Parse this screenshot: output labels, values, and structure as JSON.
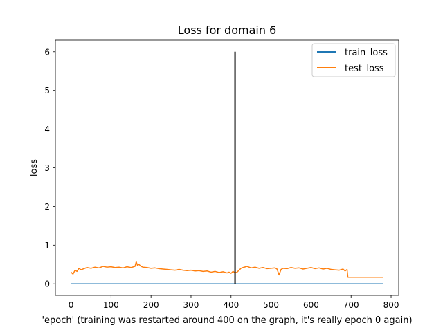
{
  "chart_data": {
    "type": "line",
    "title": "Loss for domain 6",
    "xlabel": "'epoch' (training was restarted around 400 on the graph, it's really epoch 0 again)",
    "ylabel": "loss",
    "xlim": [
      -39,
      819
    ],
    "ylim": [
      -0.3,
      6.3
    ],
    "xticks": [
      0,
      100,
      200,
      300,
      400,
      500,
      600,
      700,
      800
    ],
    "yticks": [
      0,
      1,
      2,
      3,
      4,
      5,
      6
    ],
    "grid": false,
    "legend_position": "top-right",
    "series": [
      {
        "name": "train_loss",
        "color": "#1f77b4",
        "x": [
          0,
          100,
          200,
          300,
          400,
          500,
          600,
          700,
          780
        ],
        "y": [
          0,
          0,
          0,
          0,
          0,
          0,
          0,
          0,
          0
        ]
      },
      {
        "name": "test_loss",
        "color": "#ff7f0e",
        "x": [
          0,
          5,
          10,
          15,
          20,
          25,
          30,
          40,
          50,
          60,
          70,
          80,
          90,
          100,
          110,
          120,
          130,
          140,
          150,
          160,
          163,
          166,
          170,
          175,
          180,
          190,
          200,
          210,
          220,
          230,
          240,
          250,
          260,
          270,
          280,
          290,
          300,
          310,
          320,
          330,
          340,
          350,
          360,
          370,
          380,
          390,
          395,
          400,
          405,
          410,
          415,
          420,
          425,
          430,
          440,
          450,
          460,
          470,
          480,
          490,
          500,
          510,
          515,
          520,
          525,
          530,
          540,
          550,
          560,
          570,
          580,
          590,
          600,
          610,
          620,
          630,
          640,
          650,
          660,
          670,
          680,
          685,
          690,
          692,
          695,
          700,
          780
        ],
        "y": [
          0.3,
          0.25,
          0.35,
          0.32,
          0.4,
          0.36,
          0.38,
          0.42,
          0.4,
          0.43,
          0.41,
          0.45,
          0.43,
          0.44,
          0.42,
          0.43,
          0.41,
          0.44,
          0.42,
          0.45,
          0.57,
          0.48,
          0.5,
          0.45,
          0.43,
          0.42,
          0.4,
          0.41,
          0.39,
          0.38,
          0.37,
          0.36,
          0.35,
          0.37,
          0.35,
          0.34,
          0.35,
          0.33,
          0.34,
          0.32,
          0.33,
          0.3,
          0.32,
          0.29,
          0.31,
          0.28,
          0.3,
          0.27,
          0.32,
          0.28,
          0.3,
          0.35,
          0.4,
          0.42,
          0.45,
          0.41,
          0.43,
          0.4,
          0.42,
          0.39,
          0.4,
          0.41,
          0.38,
          0.23,
          0.37,
          0.4,
          0.39,
          0.42,
          0.4,
          0.41,
          0.38,
          0.4,
          0.42,
          0.39,
          0.41,
          0.38,
          0.4,
          0.37,
          0.36,
          0.35,
          0.38,
          0.33,
          0.37,
          0.17,
          0.17,
          0.17,
          0.17
        ]
      }
    ],
    "vertical_line": {
      "x": 410,
      "y_from": 0,
      "y_to": 6,
      "color": "#000000"
    }
  }
}
